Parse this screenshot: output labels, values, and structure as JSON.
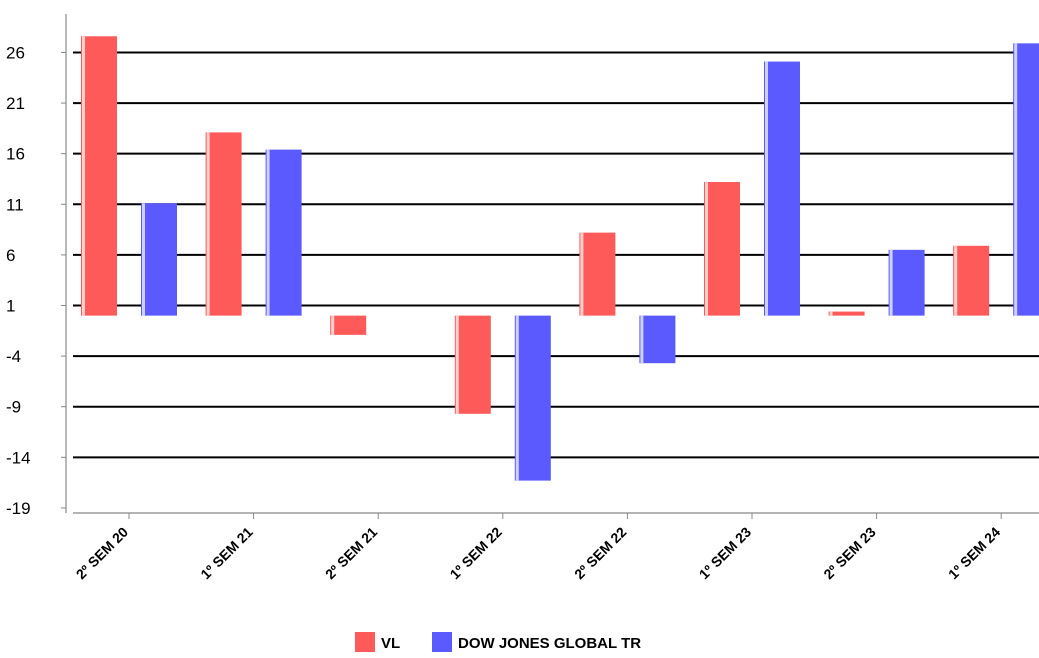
{
  "chart_data": {
    "type": "bar",
    "title": "",
    "xlabel": "",
    "ylabel": "",
    "categories": [
      "2º SEM 20",
      "1º SEM 21",
      "2º SEM 21",
      "1º SEM 22",
      "2º SEM 22",
      "1º SEM 23",
      "2º SEM 23",
      "1º SEM 24"
    ],
    "series": [
      {
        "name": "VL",
        "color": "#ff5a5a",
        "values": [
          27.6,
          18.1,
          -1.9,
          -9.7,
          8.2,
          13.2,
          0.4,
          6.9
        ]
      },
      {
        "name": "DOW JONES GLOBAL TR",
        "color": "#5a5aff",
        "values": [
          11.1,
          16.4,
          0,
          -16.3,
          -4.7,
          25.1,
          6.5,
          26.9
        ]
      }
    ],
    "ylim": [
      -19.5,
      29.8
    ],
    "yticks": [
      26,
      21,
      16,
      11,
      6,
      1,
      -4,
      -9,
      -14,
      -19
    ],
    "grid": true,
    "legend": "bottom-center"
  }
}
